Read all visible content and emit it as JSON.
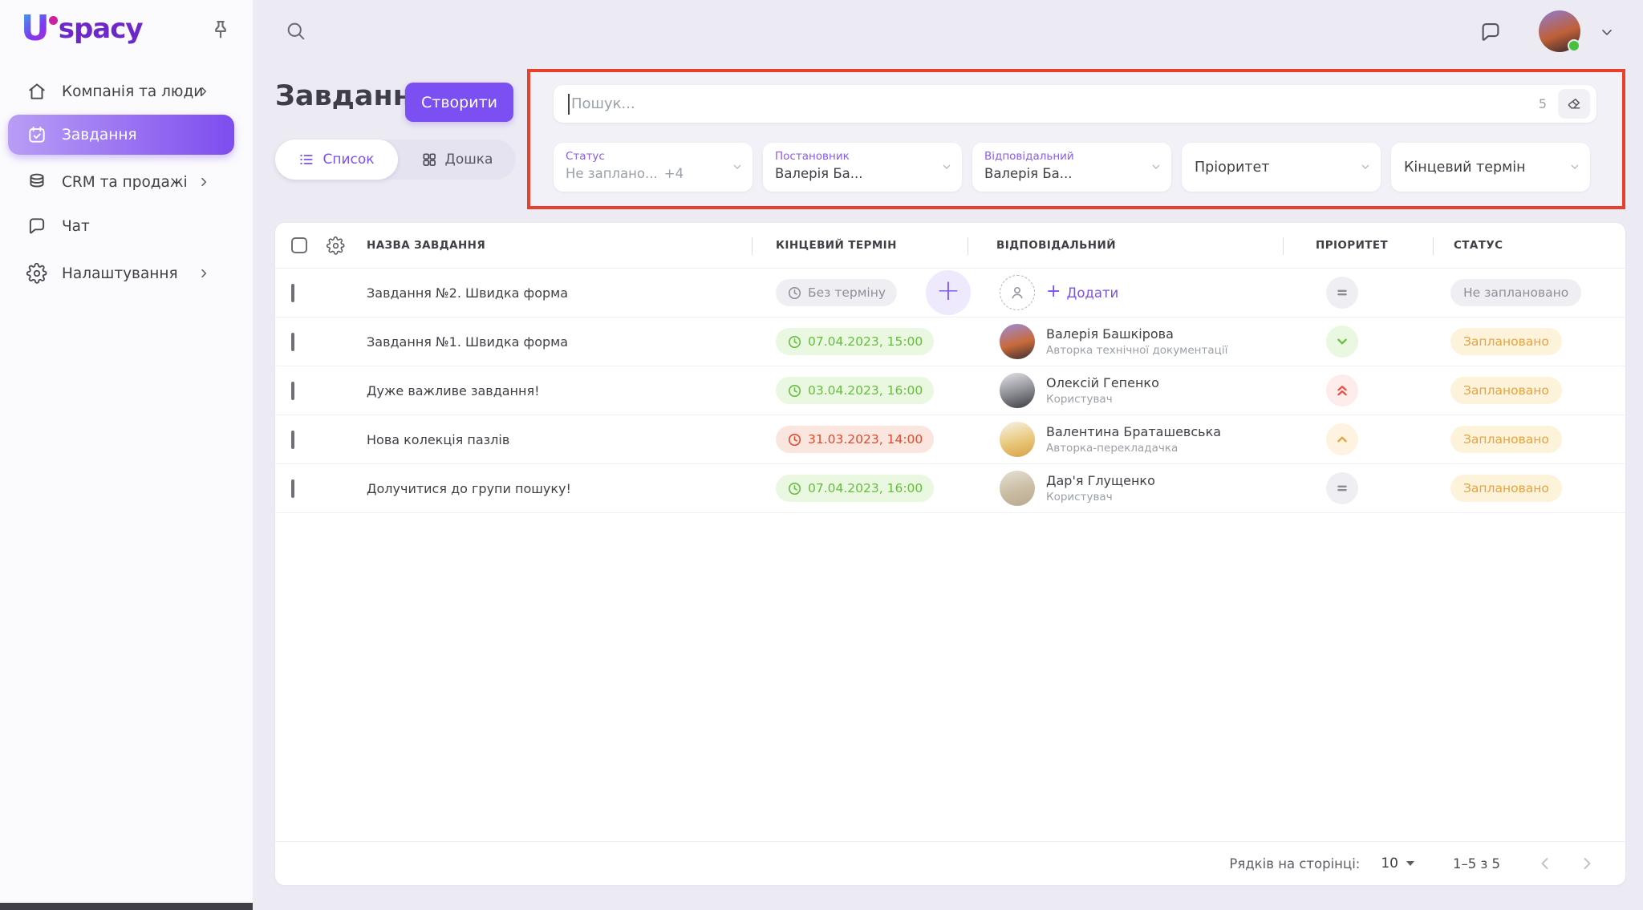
{
  "sidebar": {
    "logo": {
      "u": "U",
      "rest": "spacy"
    },
    "items": [
      {
        "label": "Компанія та люди",
        "icon": "home",
        "chevron": true,
        "active": false
      },
      {
        "label": "Завдання",
        "icon": "tasks-calendar",
        "chevron": false,
        "active": true
      },
      {
        "label": "CRM та продажі",
        "icon": "crm-database",
        "chevron": true,
        "active": false
      },
      {
        "label": "Чат",
        "icon": "chat-bubble",
        "chevron": false,
        "active": false
      },
      {
        "label": "Налаштування",
        "icon": "settings-gear",
        "chevron": true,
        "active": false
      }
    ]
  },
  "header": {
    "title": "Завдання",
    "create_button": "Створити",
    "view_tabs": [
      {
        "label": "Список",
        "active": true
      },
      {
        "label": "Дошка",
        "active": false
      }
    ]
  },
  "filter_panel": {
    "highlight_color": "#e8402f",
    "search": {
      "placeholder": "Пошук...",
      "count": "5"
    },
    "selects": [
      {
        "label": "Статус",
        "value": "Не заплано...",
        "extra": "+4",
        "kind": "labeled",
        "value_muted": true
      },
      {
        "label": "Постановник",
        "value": "Валерія Ба...",
        "extra": "",
        "kind": "labeled",
        "value_muted": false
      },
      {
        "label": "Відповідальний",
        "value": "Валерія Ба...",
        "extra": "",
        "kind": "labeled",
        "value_muted": false
      },
      {
        "label": "Пріоритет",
        "kind": "plain"
      },
      {
        "label": "Кінцевий термін",
        "kind": "plain"
      }
    ]
  },
  "table": {
    "columns": [
      "НАЗВА ЗАВДАННЯ",
      "КІНЦЕВИЙ ТЕРМІН",
      "ВІДПОВІДАЛЬНИЙ",
      "ПРІОРИТЕТ",
      "СТАТУС"
    ],
    "add_label": "Додати",
    "rows": [
      {
        "name": "Завдання №2. Швидка форма",
        "due": "Без терміну",
        "due_type": "none",
        "has_plus": true,
        "assignee": null,
        "avatar": null,
        "priority": "normal",
        "status": "Не заплановано",
        "status_type": "unplanned"
      },
      {
        "name": "Завдання №1. Швидка форма",
        "due": "07.04.2023, 15:00",
        "due_type": "ok",
        "has_plus": false,
        "assignee": {
          "name": "Валерія Башкірова",
          "role": "Авторка технічної документації"
        },
        "avatar": [
          "#9b8cd8",
          "#c96a3a",
          "#3a2e33"
        ],
        "priority": "low",
        "status": "Заплановано",
        "status_type": "planned"
      },
      {
        "name": "Дуже важливе завдання!",
        "due": "03.04.2023, 16:00",
        "due_type": "ok",
        "has_plus": false,
        "assignee": {
          "name": "Олексій Гепенко",
          "role": "Користувач"
        },
        "avatar": [
          "#e3e3e7",
          "#8a8a92",
          "#3c3c42"
        ],
        "priority": "highest",
        "status": "Заплановано",
        "status_type": "planned"
      },
      {
        "name": "Нова колекція пазлів",
        "due": "31.03.2023, 14:00",
        "due_type": "overdue",
        "has_plus": false,
        "assignee": {
          "name": "Валентина Браташевська",
          "role": "Авторка-перекладачка"
        },
        "avatar": [
          "#f7f3ea",
          "#e8c87a",
          "#d9a049"
        ],
        "priority": "high",
        "status": "Заплановано",
        "status_type": "planned"
      },
      {
        "name": "Долучитися до групи пошуку!",
        "due": "07.04.2023, 16:00",
        "due_type": "ok",
        "has_plus": false,
        "assignee": {
          "name": "Дар'я Глущенко",
          "role": "Користувач"
        },
        "avatar": [
          "#e6e0d6",
          "#cbbda4",
          "#b8a88f"
        ],
        "priority": "normal",
        "status": "Заплановано",
        "status_type": "planned"
      }
    ],
    "pagination": {
      "rows_per_page_label": "Рядків на сторінці:",
      "rows_per_page": "10",
      "range": "1–5 з 5"
    }
  },
  "colors": {
    "accent_purple": "#7b4ff2",
    "highlight_red": "#e8402f",
    "ok_green": "#64bf3c",
    "overdue_red": "#e24a2e",
    "planned_orange": "#e7a33c"
  }
}
